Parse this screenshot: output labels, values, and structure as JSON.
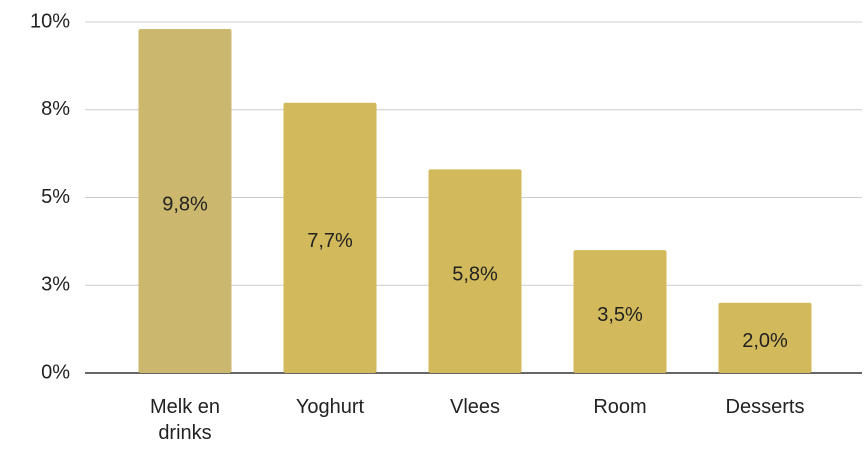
{
  "chart_data": {
    "type": "bar",
    "categories": [
      "Melk en drinks",
      "Yoghurt",
      "Vlees",
      "Room",
      "Desserts"
    ],
    "values": [
      9.8,
      7.7,
      5.8,
      3.5,
      2.0
    ],
    "value_labels": [
      "9,8%",
      "7,7%",
      "5,8%",
      "3,5%",
      "2,0%"
    ],
    "colors": [
      "#cbb86e",
      "#d2b95b",
      "#d2b95b",
      "#d2b95b",
      "#d2b95b"
    ],
    "ylim": [
      0,
      10
    ],
    "yticks": [
      {
        "value": 0,
        "label": "0%"
      },
      {
        "value": 2.5,
        "label": "3%"
      },
      {
        "value": 5,
        "label": "5%"
      },
      {
        "value": 7.5,
        "label": "8%"
      },
      {
        "value": 10,
        "label": "10%"
      }
    ],
    "grid": true
  }
}
